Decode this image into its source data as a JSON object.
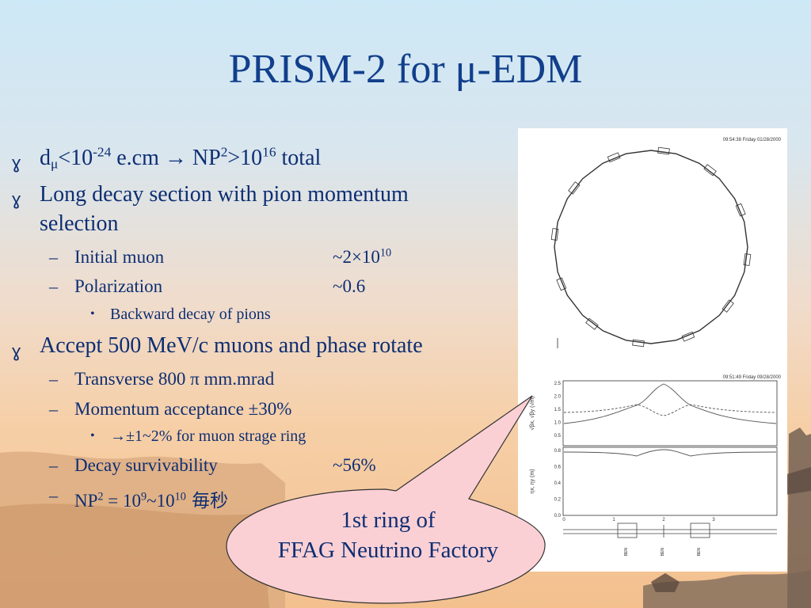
{
  "slide": {
    "title": "PRISM-2 for μ-EDM",
    "bullets": {
      "b1": {
        "t1": "d",
        "t2": "μ",
        "t3": "<10",
        "t4": "-24",
        "t5": " e.cm → NP",
        "t6": "2",
        "t7": ">10",
        "t8": "16",
        "t9": " total"
      },
      "b2": {
        "line1": "Long decay section with pion momentum",
        "line2": "selection"
      },
      "b2_sub": [
        {
          "label": "Initial muon",
          "value_base": "~2×10",
          "value_exp": "10"
        },
        {
          "label": "Polarization",
          "value": "~0.6"
        }
      ],
      "b2_sub_sub": "Backward decay of pions",
      "b3": "Accept 500 MeV/c muons and phase rotate",
      "b3_sub": {
        "transverse": "Transverse 800 π mm.mrad",
        "momentum": "Momentum acceptance ±30%",
        "momentum_sub": "→±1~2% for muon strage ring",
        "decay_label": "Decay survivability",
        "decay_value": "~56%",
        "np_a": "NP",
        "np_b": "2",
        "np_c": " = 10",
        "np_d": "9",
        "np_e": "~10",
        "np_f": "10",
        "np_g": " 毎秒"
      }
    },
    "figure": {
      "stamp_top": "09:54:38 Friday 01/28/2000",
      "stamp_mid": "09:51:49 Friday 09/28/2000",
      "beta_ticks": [
        "2.5",
        "2.0",
        "1.5",
        "1.0",
        "0.5"
      ],
      "beta_ylabel": "√βx, √βy (√m)",
      "disp_ticks": [
        "0.8",
        "0.6",
        "0.4",
        "0.2",
        "0.0"
      ],
      "disp_ylabel": "ηx, ηy (m)",
      "x_ticks": [
        "0",
        "1",
        "2",
        "3"
      ],
      "magnet_labels": [
        "BEN",
        "BEN",
        "BEN"
      ]
    },
    "callout": {
      "line1": "1st ring of",
      "line2": "FFAG Neutrino Factory"
    }
  }
}
